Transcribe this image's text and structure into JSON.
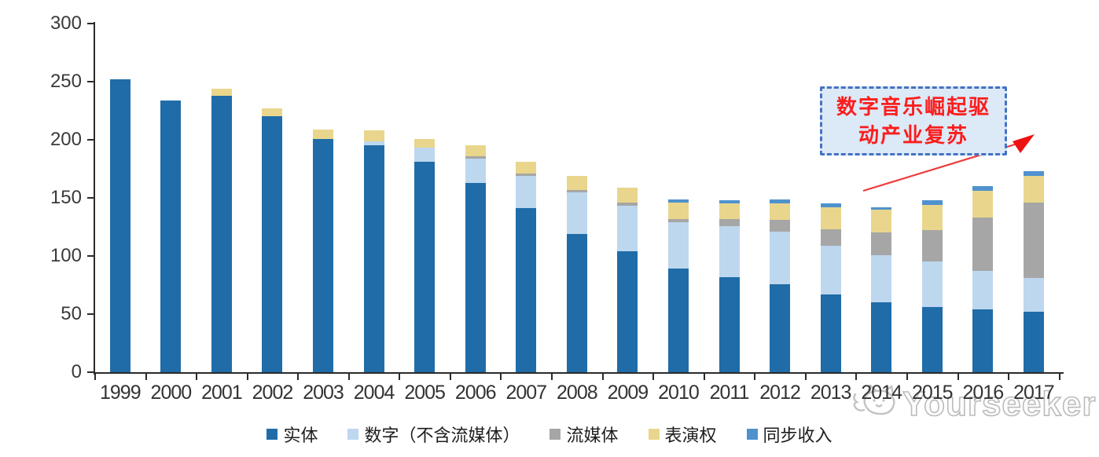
{
  "chart_data": {
    "type": "bar",
    "stacked": true,
    "title": "",
    "xlabel": "",
    "ylabel": "",
    "categories": [
      "1999",
      "2000",
      "2001",
      "2002",
      "2003",
      "2004",
      "2005",
      "2006",
      "2007",
      "2008",
      "2009",
      "2010",
      "2011",
      "2012",
      "2013",
      "2014",
      "2015",
      "2016",
      "2017"
    ],
    "series": [
      {
        "name": "实体",
        "color": "#1f6ca8",
        "values": [
          252,
          234,
          238,
          220,
          201,
          195,
          181,
          163,
          141,
          119,
          104,
          89,
          82,
          76,
          67,
          60,
          56,
          54,
          52
        ]
      },
      {
        "name": "数字（不含流媒体）",
        "color": "#bdd7ee",
        "values": [
          0,
          0,
          0,
          0,
          0,
          4,
          12,
          21,
          28,
          36,
          39,
          40,
          44,
          45,
          42,
          41,
          39,
          33,
          29
        ]
      },
      {
        "name": "流媒体",
        "color": "#a6a6a6",
        "values": [
          0,
          0,
          0,
          0,
          0,
          0,
          0,
          2,
          2,
          2,
          3,
          3,
          6,
          10,
          14,
          19,
          27,
          46,
          65
        ]
      },
      {
        "name": "表演权",
        "color": "#e9d68c",
        "values": [
          0,
          0,
          6,
          7,
          8,
          9,
          8,
          9,
          10,
          12,
          13,
          14,
          13,
          14,
          19,
          20,
          22,
          23,
          23
        ]
      },
      {
        "name": "同步收入",
        "color": "#4f92ce",
        "values": [
          0,
          0,
          0,
          0,
          0,
          0,
          0,
          0,
          0,
          0,
          0,
          3,
          3,
          4,
          3,
          2,
          4,
          4,
          4
        ]
      }
    ],
    "ylim": [
      0,
      300
    ],
    "yticks": [
      0,
      50,
      100,
      150,
      200,
      250,
      300
    ],
    "grid": false,
    "legend_position": "bottom"
  },
  "annotation": {
    "line1": "数字音乐崛起驱",
    "line2": "动产业复苏",
    "border_color": "#4472c4",
    "fill_color": "#dce9f7",
    "text_color": "#fb1d1d",
    "arrow_color": "#f03b3b"
  },
  "watermark": {
    "text": "Yourseeker",
    "color": "#bcbcbc"
  }
}
